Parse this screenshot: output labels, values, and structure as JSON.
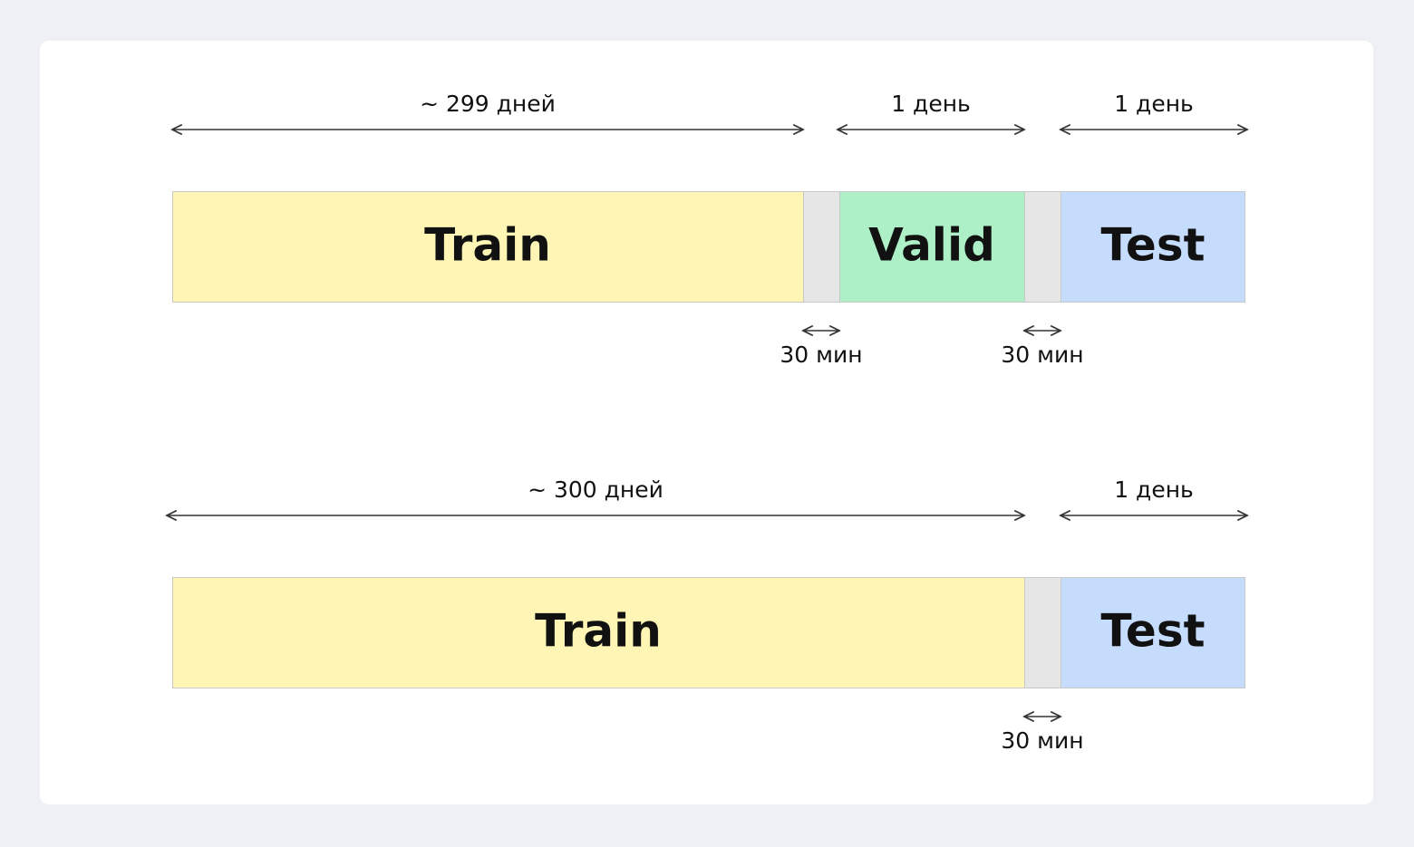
{
  "rows": [
    {
      "spans": [
        "~ 299 дней",
        "1 день",
        "1 день"
      ],
      "segments": [
        "Train",
        "Valid",
        "Test"
      ],
      "gap_labels": [
        "30 мин",
        "30 мин"
      ]
    },
    {
      "spans": [
        "~ 300 дней",
        "1 день"
      ],
      "segments": [
        "Train",
        "Test"
      ],
      "gap_labels": [
        "30 мин"
      ]
    }
  ]
}
